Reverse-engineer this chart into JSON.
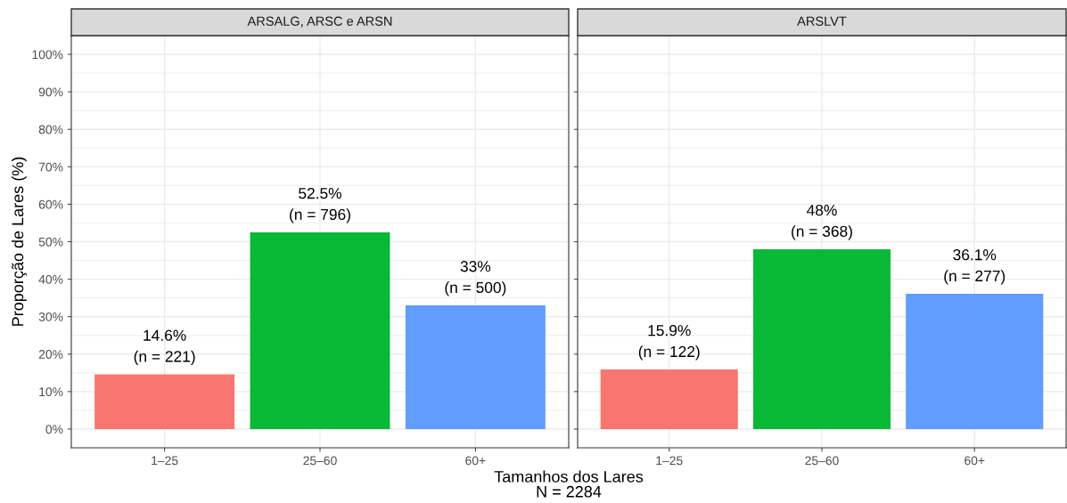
{
  "chart_data": [
    {
      "type": "bar",
      "title": "ARSALG, ARSC e ARSN",
      "categories": [
        "1–25",
        "25–60",
        "60+"
      ],
      "values": [
        14.6,
        52.5,
        33
      ],
      "colors": [
        "#f8766d",
        "#08b936",
        "#619cff"
      ],
      "value_labels": [
        "14.6%\n(n = 221)",
        "52.5%\n(n = 796)",
        "33%\n(n = 500)"
      ],
      "ylim": [
        -5,
        105
      ],
      "yticks": [
        {
          "value": 0,
          "label": "0%"
        },
        {
          "value": 10,
          "label": "10%"
        },
        {
          "value": 20,
          "label": "20%"
        },
        {
          "value": 30,
          "label": "30%"
        },
        {
          "value": 40,
          "label": "40%"
        },
        {
          "value": 50,
          "label": "50%"
        },
        {
          "value": 60,
          "label": "60%"
        },
        {
          "value": 70,
          "label": "70%"
        },
        {
          "value": 80,
          "label": "80%"
        },
        {
          "value": 90,
          "label": "90%"
        },
        {
          "value": 100,
          "label": "100%"
        }
      ],
      "ylabel": "Proporção de Lares (%)",
      "xlabel": "Tamanhos dos Lares\nN = 2284",
      "grid": true
    },
    {
      "type": "bar",
      "title": "ARSLVT",
      "categories": [
        "1–25",
        "25–60",
        "60+"
      ],
      "values": [
        15.9,
        48,
        36.1
      ],
      "colors": [
        "#f8766d",
        "#08b936",
        "#619cff"
      ],
      "value_labels": [
        "15.9%\n(n = 122)",
        "48%\n(n = 368)",
        "36.1%\n(n = 277)"
      ],
      "ylim": [
        -5,
        105
      ],
      "yticks": [
        {
          "value": 0,
          "label": null
        },
        {
          "value": 10,
          "label": null
        },
        {
          "value": 20,
          "label": null
        },
        {
          "value": 30,
          "label": null
        },
        {
          "value": 40,
          "label": null
        },
        {
          "value": 50,
          "label": null
        },
        {
          "value": 60,
          "label": null
        },
        {
          "value": 70,
          "label": null
        },
        {
          "value": 80,
          "label": null
        },
        {
          "value": 90,
          "label": null
        },
        {
          "value": 100,
          "label": null
        }
      ],
      "tick_labels": "x",
      "grid": true
    }
  ]
}
